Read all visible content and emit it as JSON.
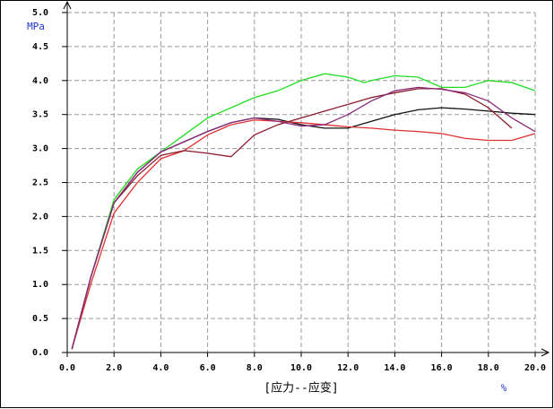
{
  "chart_data": {
    "type": "line",
    "y_label": "MPa",
    "x_label": "[应力--应变]",
    "x_unit": "%",
    "xlim": [
      0,
      20
    ],
    "ylim": [
      0,
      5
    ],
    "xticks": [
      {
        "value": 0,
        "label": "0.0"
      },
      {
        "value": 2,
        "label": "2.0"
      },
      {
        "value": 4,
        "label": "4.0"
      },
      {
        "value": 6,
        "label": "6.0"
      },
      {
        "value": 8,
        "label": "8.0"
      },
      {
        "value": 10,
        "label": "10.0"
      },
      {
        "value": 12,
        "label": "12.0"
      },
      {
        "value": 14,
        "label": "14.0"
      },
      {
        "value": 16,
        "label": "16.0"
      },
      {
        "value": 18,
        "label": "18.0"
      },
      {
        "value": 20,
        "label": "20.0"
      }
    ],
    "yticks": [
      {
        "value": 0,
        "label": "0.0"
      },
      {
        "value": 0.5,
        "label": "0.5"
      },
      {
        "value": 1,
        "label": "1.0"
      },
      {
        "value": 1.5,
        "label": "1.5"
      },
      {
        "value": 2,
        "label": "2.0"
      },
      {
        "value": 2.5,
        "label": "2.5"
      },
      {
        "value": 3,
        "label": "3.0"
      },
      {
        "value": 3.5,
        "label": "3.5"
      },
      {
        "value": 4,
        "label": "4.0"
      },
      {
        "value": 4.5,
        "label": "4.5"
      },
      {
        "value": 5,
        "label": "5.0"
      }
    ],
    "grid": true,
    "series": [
      {
        "color": "#22dd22",
        "x": [
          0.2,
          1,
          2,
          3,
          4,
          5,
          6,
          7,
          8,
          9,
          10,
          11,
          12,
          12.7,
          13,
          14,
          15,
          16,
          17,
          18,
          19,
          20
        ],
        "values": [
          0.05,
          1.1,
          2.25,
          2.7,
          2.95,
          3.2,
          3.45,
          3.6,
          3.75,
          3.85,
          4.0,
          4.1,
          4.05,
          3.97,
          4.0,
          4.07,
          4.05,
          3.9,
          3.9,
          4.0,
          3.97,
          3.85
        ]
      },
      {
        "color": "#111111",
        "x": [
          0.2,
          1,
          2,
          3,
          4,
          5,
          6,
          7,
          8,
          9,
          10,
          11,
          12,
          13,
          14,
          15,
          16,
          17,
          18,
          19,
          20
        ],
        "values": [
          0.05,
          1.1,
          2.2,
          2.65,
          2.95,
          3.1,
          3.25,
          3.38,
          3.45,
          3.43,
          3.35,
          3.3,
          3.3,
          3.4,
          3.5,
          3.57,
          3.6,
          3.58,
          3.55,
          3.52,
          3.5
        ]
      },
      {
        "color": "#e03030",
        "x": [
          0.2,
          1,
          2,
          3,
          4,
          5,
          6,
          7,
          8,
          9,
          10,
          11,
          12,
          13,
          14,
          15,
          16,
          17,
          18,
          19,
          20
        ],
        "values": [
          0.05,
          1.0,
          2.05,
          2.5,
          2.85,
          2.97,
          3.2,
          3.35,
          3.42,
          3.4,
          3.38,
          3.35,
          3.32,
          3.3,
          3.27,
          3.25,
          3.22,
          3.15,
          3.12,
          3.12,
          3.22
        ]
      },
      {
        "color": "#8b1a2a",
        "x": [
          0.2,
          1,
          2,
          3,
          4,
          5,
          6,
          7,
          8,
          9,
          10,
          11,
          12,
          13,
          14,
          15,
          16,
          17,
          18,
          19
        ],
        "values": [
          0.05,
          1.1,
          2.2,
          2.6,
          2.9,
          2.97,
          2.93,
          2.88,
          3.2,
          3.35,
          3.45,
          3.55,
          3.65,
          3.75,
          3.82,
          3.88,
          3.88,
          3.8,
          3.6,
          3.3
        ]
      },
      {
        "color": "#8a2a7a",
        "x": [
          0.2,
          1,
          2,
          3,
          4,
          5,
          6,
          7,
          8,
          9,
          10,
          11,
          12,
          13,
          14,
          15,
          16,
          17,
          18,
          19,
          20
        ],
        "values": [
          0.05,
          1.1,
          2.2,
          2.65,
          2.95,
          3.1,
          3.25,
          3.38,
          3.45,
          3.4,
          3.33,
          3.35,
          3.5,
          3.7,
          3.85,
          3.9,
          3.87,
          3.82,
          3.7,
          3.45,
          3.25
        ]
      }
    ]
  }
}
